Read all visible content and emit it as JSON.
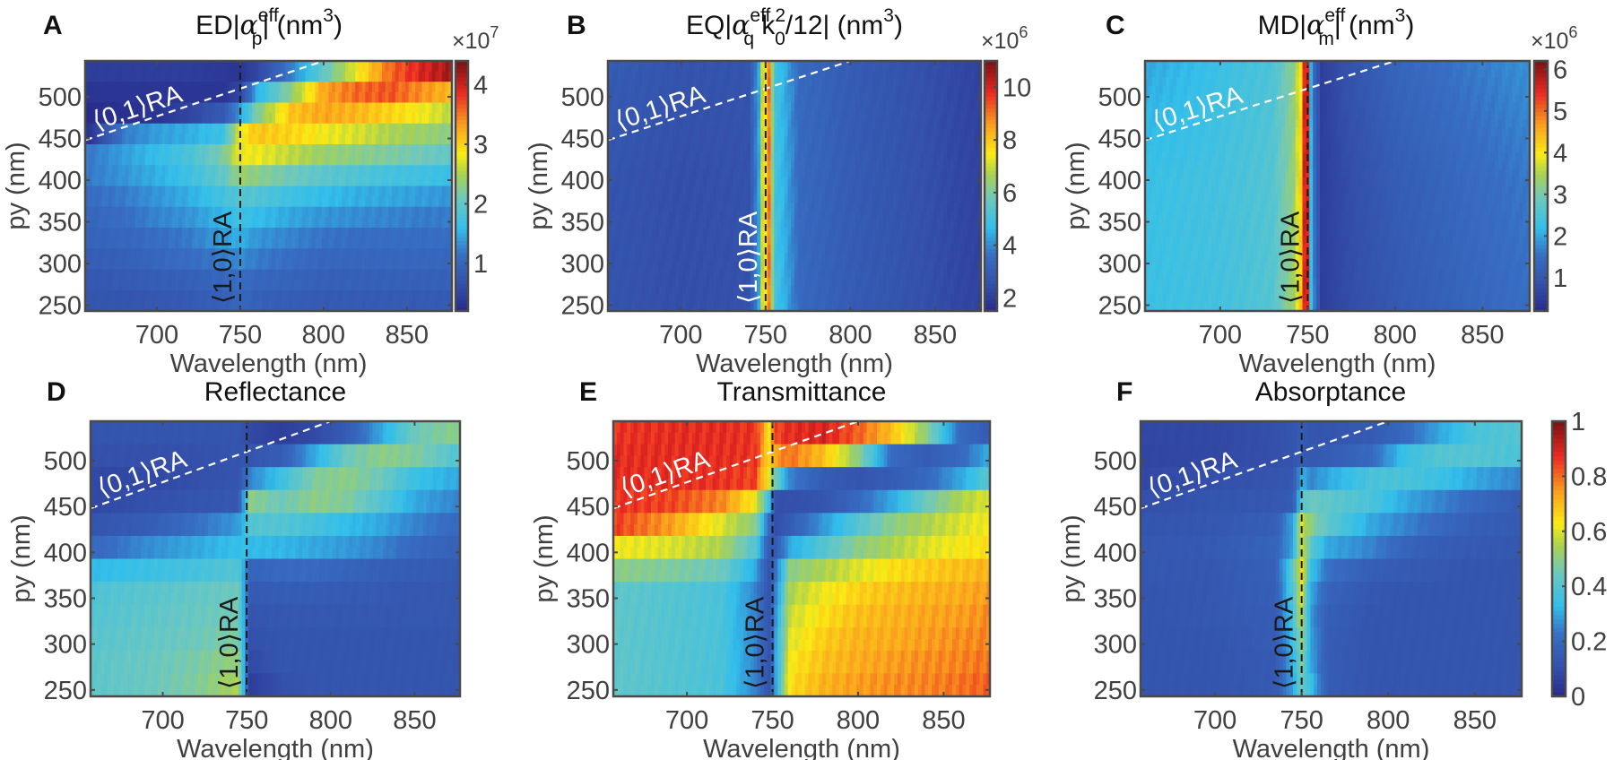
{
  "figure": {
    "colormap": "jet",
    "x_range": [
      657,
      877
    ],
    "y_range": [
      243,
      543
    ],
    "x_ticks": [
      700,
      750,
      800,
      850
    ],
    "y_ticks": [
      250,
      300,
      350,
      400,
      450,
      500
    ],
    "xlabel": "Wavelength (nm)",
    "ylabel": "py (nm)",
    "ra10_label": "⟨1,0⟩RA",
    "ra01_label": "⟨0,1⟩RA",
    "ra10_wavelength": 750,
    "ra01_line": {
      "x": [
        657,
        800
      ],
      "y": [
        448,
        543
      ]
    }
  },
  "chart_data": [
    {
      "panel": "A",
      "type": "heatmap",
      "title_main": "ED|α",
      "title_sub": "p",
      "title_sup": "eff",
      "title_tail": "| (nm",
      "title_tail_sup": "3",
      "title_end": ")",
      "colorbar": {
        "exponent_label": "×10",
        "exponent": "7",
        "ticks": [
          1,
          2,
          3,
          4
        ],
        "range": [
          0.2,
          4.4
        ]
      },
      "ra10_label_color": "#1a1a1a",
      "ra10_line_color": "#1a1a1a",
      "description": "Weak (~0.5-1) below ⟨0,1⟩RA line at short wavelength; strong band (3-4.4) above 750 nm for py 420-540, increasing toward long wavelength",
      "rows_py": [
        250,
        275,
        300,
        325,
        350,
        375,
        400,
        425,
        450,
        475,
        500,
        525
      ],
      "cols_wl": [
        660,
        680,
        700,
        720,
        740,
        750,
        760,
        780,
        800,
        820,
        840,
        860,
        875
      ],
      "values": [
        [
          0.7,
          0.7,
          0.75,
          0.8,
          0.9,
          1.0,
          0.9,
          0.85,
          0.8,
          0.8,
          0.8,
          0.8,
          0.8
        ],
        [
          0.75,
          0.8,
          0.85,
          0.9,
          1.0,
          1.1,
          1.0,
          0.95,
          0.9,
          0.9,
          0.9,
          0.9,
          0.9
        ],
        [
          0.85,
          0.9,
          1.0,
          1.1,
          1.2,
          1.3,
          1.2,
          1.1,
          1.0,
          1.0,
          1.0,
          1.0,
          1.0
        ],
        [
          0.95,
          1.0,
          1.1,
          1.2,
          1.4,
          1.5,
          1.35,
          1.25,
          1.15,
          1.1,
          1.1,
          1.1,
          1.1
        ],
        [
          1.0,
          1.1,
          1.25,
          1.35,
          1.55,
          1.7,
          1.6,
          1.45,
          1.35,
          1.3,
          1.25,
          1.2,
          1.2
        ],
        [
          1.1,
          1.2,
          1.35,
          1.5,
          1.75,
          1.9,
          1.85,
          1.7,
          1.6,
          1.5,
          1.45,
          1.4,
          1.35
        ],
        [
          1.2,
          1.35,
          1.5,
          1.7,
          2.0,
          2.4,
          2.3,
          2.1,
          1.95,
          1.85,
          1.75,
          1.7,
          1.65
        ],
        [
          1.2,
          1.4,
          1.6,
          1.8,
          2.2,
          2.8,
          2.8,
          2.6,
          2.4,
          2.3,
          2.2,
          2.1,
          2.0
        ],
        [
          0.3,
          1.2,
          1.4,
          1.5,
          1.7,
          2.8,
          3.1,
          3.0,
          2.8,
          2.7,
          2.5,
          2.4,
          2.3
        ],
        [
          0.2,
          0.25,
          0.3,
          0.5,
          0.8,
          1.4,
          2.2,
          3.1,
          3.3,
          3.2,
          3.0,
          2.8,
          2.6
        ],
        [
          0.3,
          0.3,
          0.3,
          0.3,
          0.3,
          0.5,
          1.5,
          2.3,
          3.3,
          3.6,
          3.7,
          3.4,
          3.2
        ],
        [
          0.4,
          0.4,
          0.4,
          0.4,
          0.35,
          0.3,
          0.5,
          1.2,
          2.0,
          2.8,
          3.6,
          4.0,
          4.2
        ]
      ]
    },
    {
      "panel": "B",
      "type": "heatmap",
      "title_main": "EQ|α",
      "title_sub": "q",
      "title_sup": "eff",
      "title_mid": "k",
      "title_mid_sub": "0",
      "title_mid_sup": "2",
      "title_tail": "/12| (nm",
      "title_tail_sup": "3",
      "title_end": ")",
      "colorbar": {
        "exponent_label": "×10",
        "exponent": "6",
        "ticks": [
          2,
          4,
          6,
          8,
          10
        ],
        "range": [
          1.5,
          11
        ]
      },
      "ra10_label_color": "#ffffff",
      "ra10_line_color": "#1a1a1a",
      "description": "Near-uniform ~2.5-3 background; sharp resonance peak (~10.5) just right of 750 nm with yellow/cyan shoulders",
      "rows_py": [
        250,
        400,
        540
      ],
      "cols_wl": [
        660,
        700,
        740,
        747,
        748,
        750,
        751,
        752,
        755,
        760,
        770,
        800,
        840,
        875
      ],
      "values": [
        [
          2.6,
          2.4,
          2.5,
          4.6,
          7.0,
          7.5,
          10.5,
          9.0,
          5.0,
          4.6,
          3.4,
          2.9,
          2.5,
          2.1
        ],
        [
          2.6,
          2.4,
          2.5,
          4.6,
          7.0,
          7.5,
          10.5,
          9.0,
          5.0,
          4.6,
          3.4,
          2.9,
          2.5,
          2.1
        ],
        [
          2.9,
          2.6,
          2.6,
          4.6,
          7.0,
          7.5,
          10.5,
          9.0,
          5.0,
          4.6,
          3.4,
          2.9,
          2.5,
          2.1
        ]
      ]
    },
    {
      "panel": "C",
      "type": "heatmap",
      "title_main": "MD|α",
      "title_sub": "m",
      "title_sup": "eff",
      "title_tail": "| (nm",
      "title_tail_sup": "3",
      "title_end": ")",
      "colorbar": {
        "exponent_label": "×10",
        "exponent": "6",
        "ticks": [
          1,
          2,
          3,
          4,
          5,
          6
        ],
        "range": [
          0.2,
          6.2
        ]
      },
      "ra10_label_color": "#1a1a1a",
      "ra10_line_color": "#1a1a1a",
      "description": "~2.3 cyan-green left of 750 nm rising to ~5.5 red at 748-751 nm; deep minimum (~0.5) just above 755 nm, recovering to ~1.5 at 875 nm",
      "rows_py": [
        250,
        400,
        540
      ],
      "cols_wl": [
        660,
        700,
        730,
        742,
        746,
        748,
        751,
        752,
        754,
        758,
        770,
        800,
        840,
        875
      ],
      "values": [
        [
          2.3,
          2.4,
          2.6,
          3.4,
          4.3,
          5.6,
          5.6,
          2.3,
          1.6,
          0.5,
          0.7,
          1.0,
          1.3,
          1.5
        ],
        [
          2.3,
          2.4,
          2.6,
          3.3,
          4.2,
          5.6,
          5.6,
          2.2,
          1.4,
          0.5,
          0.7,
          1.1,
          1.4,
          1.6
        ],
        [
          2.0,
          2.3,
          2.5,
          3.2,
          4.0,
          5.6,
          5.6,
          2.0,
          1.2,
          0.5,
          0.8,
          1.3,
          1.6,
          1.8
        ]
      ]
    },
    {
      "panel": "D",
      "type": "heatmap",
      "title": "Reflectance",
      "colorbar": null,
      "range": [
        0,
        1
      ],
      "ra10_label_color": "#1a1a1a",
      "ra10_line_color": "#1a1a1a",
      "description": "Coarse py steps (~25 nm). Left side ~0.45-0.5 below py 370; right side ~0.1 except bands near py 450-540 reaching ~0.5",
      "rows_py": [
        250,
        275,
        300,
        325,
        350,
        375,
        400,
        425,
        450,
        475,
        500,
        525
      ],
      "cols_wl": [
        660,
        690,
        720,
        745,
        752,
        770,
        790,
        810,
        830,
        850,
        875
      ],
      "values": [
        [
          0.42,
          0.44,
          0.48,
          0.55,
          0.05,
          0.1,
          0.12,
          0.12,
          0.12,
          0.12,
          0.12
        ],
        [
          0.42,
          0.44,
          0.47,
          0.52,
          0.08,
          0.12,
          0.12,
          0.12,
          0.12,
          0.12,
          0.12
        ],
        [
          0.41,
          0.43,
          0.45,
          0.48,
          0.1,
          0.12,
          0.12,
          0.12,
          0.12,
          0.12,
          0.12
        ],
        [
          0.4,
          0.42,
          0.44,
          0.46,
          0.12,
          0.13,
          0.13,
          0.13,
          0.13,
          0.13,
          0.13
        ],
        [
          0.39,
          0.41,
          0.43,
          0.45,
          0.14,
          0.15,
          0.15,
          0.14,
          0.14,
          0.13,
          0.13
        ],
        [
          0.33,
          0.35,
          0.37,
          0.4,
          0.18,
          0.2,
          0.2,
          0.18,
          0.16,
          0.15,
          0.14
        ],
        [
          0.2,
          0.26,
          0.3,
          0.34,
          0.33,
          0.32,
          0.3,
          0.28,
          0.25,
          0.2,
          0.17
        ],
        [
          0.12,
          0.15,
          0.22,
          0.28,
          0.4,
          0.4,
          0.37,
          0.33,
          0.3,
          0.25,
          0.2
        ],
        [
          0.08,
          0.1,
          0.12,
          0.13,
          0.5,
          0.45,
          0.5,
          0.48,
          0.4,
          0.3,
          0.25
        ],
        [
          0.08,
          0.08,
          0.1,
          0.12,
          0.25,
          0.35,
          0.48,
          0.5,
          0.45,
          0.35,
          0.3
        ],
        [
          0.1,
          0.1,
          0.1,
          0.12,
          0.12,
          0.15,
          0.3,
          0.45,
          0.5,
          0.48,
          0.4
        ],
        [
          0.12,
          0.12,
          0.12,
          0.12,
          0.08,
          0.05,
          0.08,
          0.15,
          0.3,
          0.45,
          0.5
        ]
      ]
    },
    {
      "panel": "E",
      "type": "heatmap",
      "title": "Transmittance",
      "colorbar": null,
      "range": [
        0,
        1
      ],
      "ra10_label_color": "#1a1a1a",
      "ra10_line_color": "#1a1a1a",
      "description": "High (~0.85-0.9) above py 420 short of 750 nm; ~0.4 at py < 390 short side dipping to ~0.1 at 750 nm; right side 0.6-0.8 rising with wavelength; low band (~0.1) above 750 nm at py 420-520",
      "rows_py": [
        250,
        275,
        300,
        325,
        350,
        375,
        400,
        425,
        450,
        475,
        500,
        525
      ],
      "cols_wl": [
        660,
        690,
        720,
        740,
        748,
        752,
        760,
        780,
        800,
        820,
        840,
        860,
        875
      ],
      "values": [
        [
          0.42,
          0.4,
          0.38,
          0.25,
          0.12,
          0.3,
          0.65,
          0.72,
          0.75,
          0.77,
          0.78,
          0.8,
          0.82
        ],
        [
          0.42,
          0.4,
          0.38,
          0.25,
          0.12,
          0.3,
          0.63,
          0.7,
          0.73,
          0.75,
          0.77,
          0.78,
          0.8
        ],
        [
          0.42,
          0.4,
          0.38,
          0.25,
          0.12,
          0.3,
          0.6,
          0.68,
          0.72,
          0.73,
          0.75,
          0.77,
          0.78
        ],
        [
          0.42,
          0.4,
          0.38,
          0.25,
          0.12,
          0.28,
          0.58,
          0.65,
          0.7,
          0.72,
          0.74,
          0.75,
          0.77
        ],
        [
          0.42,
          0.4,
          0.38,
          0.25,
          0.12,
          0.25,
          0.55,
          0.62,
          0.67,
          0.7,
          0.72,
          0.73,
          0.75
        ],
        [
          0.5,
          0.48,
          0.45,
          0.3,
          0.12,
          0.22,
          0.5,
          0.55,
          0.6,
          0.65,
          0.68,
          0.7,
          0.72
        ],
        [
          0.62,
          0.6,
          0.55,
          0.4,
          0.15,
          0.15,
          0.3,
          0.4,
          0.5,
          0.55,
          0.6,
          0.63,
          0.65
        ],
        [
          0.85,
          0.75,
          0.6,
          0.5,
          0.2,
          0.1,
          0.15,
          0.28,
          0.4,
          0.5,
          0.55,
          0.6,
          0.62
        ],
        [
          0.87,
          0.85,
          0.78,
          0.62,
          0.35,
          0.1,
          0.1,
          0.12,
          0.2,
          0.3,
          0.45,
          0.55,
          0.6
        ],
        [
          0.88,
          0.88,
          0.87,
          0.85,
          0.6,
          0.45,
          0.25,
          0.15,
          0.12,
          0.15,
          0.2,
          0.3,
          0.4
        ],
        [
          0.88,
          0.88,
          0.88,
          0.87,
          0.65,
          0.75,
          0.8,
          0.7,
          0.5,
          0.2,
          0.15,
          0.2,
          0.3
        ],
        [
          0.87,
          0.88,
          0.88,
          0.87,
          0.65,
          0.85,
          0.88,
          0.9,
          0.82,
          0.7,
          0.5,
          0.2,
          0.15
        ]
      ]
    },
    {
      "panel": "F",
      "type": "heatmap",
      "title": "Absorptance",
      "colorbar": {
        "ticks": [
          0,
          0.2,
          0.4,
          0.6,
          0.8,
          1
        ],
        "range": [
          0,
          1
        ]
      },
      "range": [
        0,
        1
      ],
      "ra10_label_color": "#1a1a1a",
      "ra10_line_color": "#1a1a1a",
      "description": "Mostly ~0.12; peak ~0.6-0.65 at 750 nm around py 350-440; moderate (~0.35-0.4) bands above 750 nm at py 450-540 long wavelengths",
      "rows_py": [
        250,
        275,
        300,
        325,
        350,
        375,
        400,
        425,
        450,
        475,
        500,
        525
      ],
      "cols_wl": [
        660,
        700,
        735,
        745,
        750,
        755,
        765,
        790,
        810,
        830,
        850,
        875
      ],
      "values": [
        [
          0.12,
          0.12,
          0.14,
          0.3,
          0.45,
          0.35,
          0.15,
          0.12,
          0.12,
          0.12,
          0.12,
          0.12
        ],
        [
          0.12,
          0.12,
          0.14,
          0.32,
          0.48,
          0.3,
          0.15,
          0.12,
          0.12,
          0.12,
          0.12,
          0.12
        ],
        [
          0.12,
          0.12,
          0.15,
          0.35,
          0.52,
          0.3,
          0.15,
          0.12,
          0.12,
          0.12,
          0.12,
          0.12
        ],
        [
          0.12,
          0.13,
          0.15,
          0.38,
          0.57,
          0.28,
          0.16,
          0.12,
          0.12,
          0.12,
          0.12,
          0.12
        ],
        [
          0.12,
          0.13,
          0.16,
          0.4,
          0.6,
          0.3,
          0.18,
          0.13,
          0.12,
          0.12,
          0.12,
          0.12
        ],
        [
          0.13,
          0.13,
          0.17,
          0.42,
          0.65,
          0.35,
          0.22,
          0.16,
          0.14,
          0.13,
          0.12,
          0.12
        ],
        [
          0.13,
          0.14,
          0.18,
          0.3,
          0.6,
          0.42,
          0.3,
          0.25,
          0.18,
          0.15,
          0.14,
          0.13
        ],
        [
          0.12,
          0.13,
          0.16,
          0.3,
          0.6,
          0.5,
          0.42,
          0.3,
          0.25,
          0.2,
          0.16,
          0.14
        ],
        [
          0.1,
          0.12,
          0.13,
          0.15,
          0.4,
          0.45,
          0.42,
          0.38,
          0.3,
          0.25,
          0.2,
          0.15
        ],
        [
          0.08,
          0.1,
          0.12,
          0.13,
          0.32,
          0.25,
          0.3,
          0.38,
          0.38,
          0.35,
          0.3,
          0.25
        ],
        [
          0.07,
          0.08,
          0.1,
          0.12,
          0.15,
          0.13,
          0.15,
          0.2,
          0.35,
          0.4,
          0.4,
          0.38
        ],
        [
          0.08,
          0.08,
          0.1,
          0.12,
          0.15,
          0.12,
          0.12,
          0.14,
          0.2,
          0.3,
          0.38,
          0.4
        ]
      ]
    }
  ]
}
